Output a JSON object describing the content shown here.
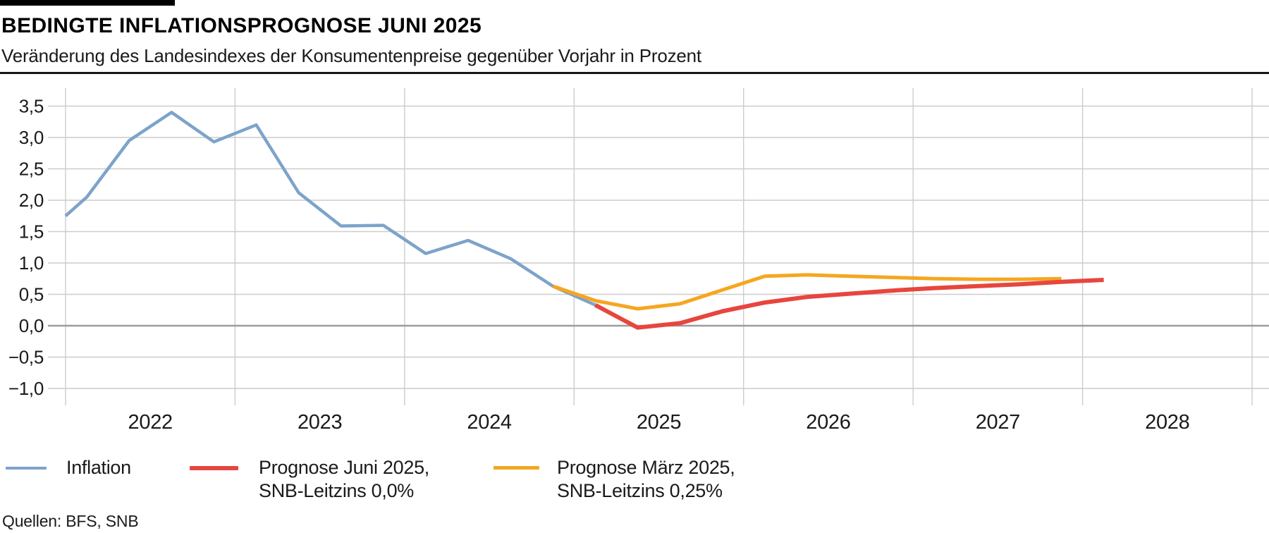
{
  "header": {
    "title": "BEDINGTE INFLATIONSPROGNOSE JUNI 2025",
    "subtitle": "Veränderung des Landesindexes der Konsumentenpreise gegenüber Vorjahr in Prozent"
  },
  "footer": {
    "source": "Quellen: BFS, SNB"
  },
  "legend": {
    "items": [
      {
        "id": "inflation",
        "label_line1": "Inflation",
        "label_line2": "",
        "color": "#7da3ca"
      },
      {
        "id": "forecast-june-2025",
        "label_line1": "Prognose Juni 2025,",
        "label_line2": "SNB-Leitzins 0,0%",
        "color": "#e7463e"
      },
      {
        "id": "forecast-march-2025",
        "label_line1": "Prognose März 2025,",
        "label_line2": "SNB-Leitzins 0,25%",
        "color": "#f6a61f"
      }
    ]
  },
  "colors": {
    "grid": "#cccccc",
    "zero_line": "#9c9c9c",
    "inflation_line": "#7da3ca",
    "forecast_june_line": "#e7463e",
    "forecast_march_line": "#f6a61f"
  },
  "chart_data": {
    "type": "line",
    "title": "BEDINGTE INFLATIONSPROGNOSE JUNI 2025",
    "subtitle": "Veränderung des Landesindexes der Konsumentenpreise gegenüber Vorjahr in Prozent",
    "x_axis": {
      "unit": "year",
      "range": [
        2022,
        2029
      ],
      "gridline_years": [
        2022,
        2023,
        2024,
        2025,
        2026,
        2027,
        2028,
        2029
      ],
      "year_labels": [
        "2022",
        "2023",
        "2024",
        "2025",
        "2026",
        "2027",
        "2028"
      ]
    },
    "y_axis": {
      "unit": "percent",
      "range": [
        -1.0,
        3.5
      ],
      "ticks": [
        {
          "value": 3.5,
          "label": "3,5"
        },
        {
          "value": 3.0,
          "label": "3,0"
        },
        {
          "value": 2.5,
          "label": "2,5"
        },
        {
          "value": 2.0,
          "label": "2,0"
        },
        {
          "value": 1.5,
          "label": "1,5"
        },
        {
          "value": 1.0,
          "label": "1,0"
        },
        {
          "value": 0.5,
          "label": "0,5"
        },
        {
          "value": 0.0,
          "label": "0,0"
        },
        {
          "value": -0.5,
          "label": "−0,5"
        },
        {
          "value": -1.0,
          "label": "−1,0"
        }
      ],
      "zero_line": 0.0
    },
    "grid": true,
    "legend_position": "bottom",
    "series": [
      {
        "name": "Inflation",
        "color": "#7da3ca",
        "stroke_width": 4.5,
        "points": [
          [
            2022.0,
            1.75
          ],
          [
            2022.125,
            2.05
          ],
          [
            2022.375,
            2.95
          ],
          [
            2022.625,
            3.4
          ],
          [
            2022.875,
            2.93
          ],
          [
            2023.125,
            3.2
          ],
          [
            2023.375,
            2.12
          ],
          [
            2023.625,
            1.59
          ],
          [
            2023.875,
            1.6
          ],
          [
            2024.125,
            1.15
          ],
          [
            2024.375,
            1.36
          ],
          [
            2024.625,
            1.07
          ],
          [
            2024.875,
            0.63
          ],
          [
            2025.125,
            0.33
          ]
        ]
      },
      {
        "name": "Prognose März 2025, SNB-Leitzins 0,25%",
        "color": "#f6a61f",
        "stroke_width": 5,
        "points": [
          [
            2024.875,
            0.63
          ],
          [
            2025.125,
            0.4
          ],
          [
            2025.375,
            0.27
          ],
          [
            2025.625,
            0.35
          ],
          [
            2025.875,
            0.57
          ],
          [
            2026.125,
            0.79
          ],
          [
            2026.375,
            0.81
          ],
          [
            2026.625,
            0.79
          ],
          [
            2026.875,
            0.77
          ],
          [
            2027.125,
            0.75
          ],
          [
            2027.375,
            0.74
          ],
          [
            2027.625,
            0.74
          ],
          [
            2027.875,
            0.75
          ]
        ]
      },
      {
        "name": "Prognose Juni 2025, SNB-Leitzins 0,0%",
        "color": "#e7463e",
        "stroke_width": 6,
        "points": [
          [
            2025.125,
            0.33
          ],
          [
            2025.375,
            -0.03
          ],
          [
            2025.625,
            0.04
          ],
          [
            2025.875,
            0.23
          ],
          [
            2026.125,
            0.37
          ],
          [
            2026.375,
            0.46
          ],
          [
            2026.625,
            0.51
          ],
          [
            2026.875,
            0.56
          ],
          [
            2027.125,
            0.6
          ],
          [
            2027.375,
            0.63
          ],
          [
            2027.625,
            0.66
          ],
          [
            2027.875,
            0.7
          ],
          [
            2028.125,
            0.73
          ]
        ]
      }
    ]
  }
}
